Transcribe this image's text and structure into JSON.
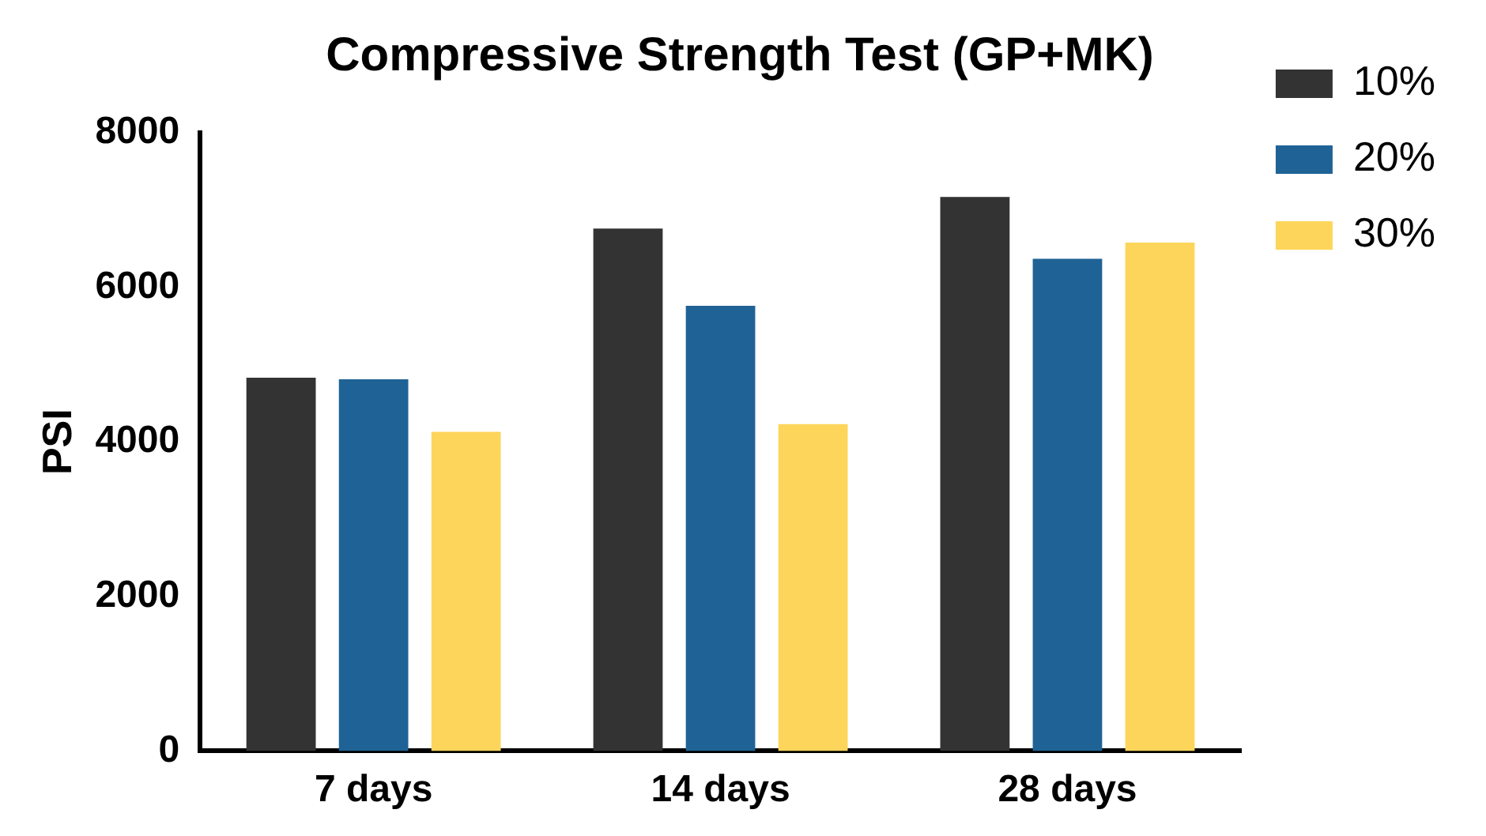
{
  "chart_data": {
    "type": "bar",
    "title": "Compressive Strength Test (GP+MK)",
    "ylabel": "PSI",
    "categories": [
      "7 days",
      "14 days",
      "28 days"
    ],
    "series": [
      {
        "name": "10%",
        "color": "#333333",
        "values": [
          4830,
          6760,
          7170
        ]
      },
      {
        "name": "20%",
        "color": "#1f6396",
        "values": [
          4810,
          5760,
          6370
        ]
      },
      {
        "name": "30%",
        "color": "#fdd55a",
        "values": [
          4130,
          4230,
          6580
        ]
      }
    ],
    "ylim": [
      0,
      8000
    ],
    "yticks": [
      0,
      2000,
      4000,
      6000,
      8000
    ],
    "grid": false,
    "legend": "right"
  }
}
